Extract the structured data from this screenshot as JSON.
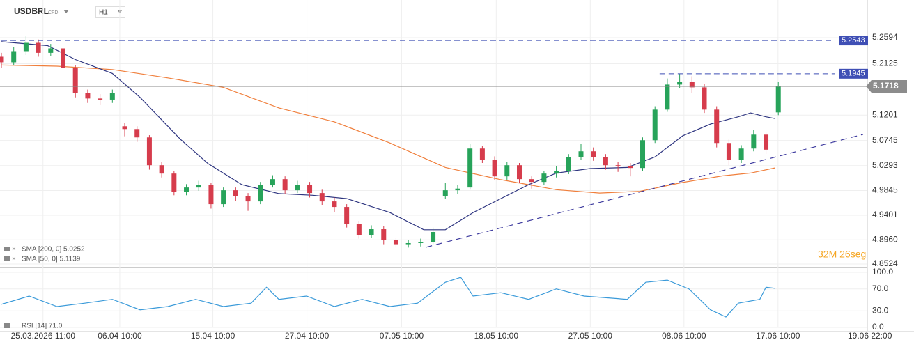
{
  "header": {
    "symbol": "USDBRL",
    "instrument_type": "CFD",
    "timeframe": "H1",
    "timer": "32M 26seg"
  },
  "chart_data": [
    {
      "type": "candlestick",
      "title": "USDBRL",
      "up_color": "#27a35a",
      "down_color": "#d63c4c",
      "grid": true,
      "xlim": [
        0,
        282
      ],
      "ylim": [
        4.8474,
        5.3145
      ],
      "xticks": [
        {
          "value": 13.5,
          "label": "25.03.2026 11:00"
        },
        {
          "value": 38.4,
          "label": "06.04 10:00"
        },
        {
          "value": 68.6,
          "label": "15.04 10:00"
        },
        {
          "value": 99.1,
          "label": "27.04 10:00"
        },
        {
          "value": 129.8,
          "label": "07.05 10:00"
        },
        {
          "value": 160.5,
          "label": "18.05 10:00"
        },
        {
          "value": 191,
          "label": "27.05 10:00"
        },
        {
          "value": 221.4,
          "label": "08.06 10:00"
        },
        {
          "value": 251.9,
          "label": "17.06 10:00"
        },
        {
          "value": 281.7,
          "label": "19.06 22:00"
        }
      ],
      "yticks": [
        5.2594,
        5.2125,
        5.1201,
        5.0745,
        5.0293,
        4.9845,
        4.9401,
        {
          "value": 4.896,
          "label": "4.8960"
        },
        4.8524
      ],
      "x": [
        0,
        4,
        8,
        12,
        16,
        20,
        24,
        28,
        32,
        36,
        40,
        44,
        48,
        52,
        56,
        60,
        64,
        68,
        72,
        76,
        80,
        84,
        88,
        92,
        96,
        100,
        104,
        108,
        112,
        116,
        120,
        124,
        128,
        132,
        136,
        140,
        144,
        148,
        152,
        156,
        160,
        164,
        168,
        172,
        176,
        180,
        184,
        188,
        192,
        196,
        200,
        204,
        208,
        212,
        216,
        220,
        224,
        228,
        232,
        236,
        240,
        244,
        248,
        252
      ],
      "open": [
        5.225,
        5.215,
        5.235,
        5.25,
        5.232,
        5.24,
        5.205,
        5.16,
        5.15,
        5.148,
        5.1,
        5.095,
        5.08,
        5.03,
        5.015,
        4.982,
        4.99,
        4.995,
        4.96,
        4.985,
        4.975,
        4.965,
        4.995,
        5.005,
        4.985,
        4.995,
        4.98,
        4.965,
        4.955,
        4.925,
        4.905,
        4.915,
        4.895,
        4.888,
        4.89,
        4.892,
        4.975,
        4.985,
        4.99,
        5.06,
        5.04,
        5.01,
        5.03,
        5.005,
        5.0,
        5.015,
        5.02,
        5.045,
        5.055,
        5.045,
        5.03,
        5.028,
        5.025,
        5.075,
        5.13,
        5.175,
        5.18,
        5.17,
        5.13,
        5.07,
        5.04,
        5.06,
        5.085,
        5.125
      ],
      "high": [
        5.232,
        5.242,
        5.262,
        5.256,
        5.248,
        5.244,
        5.21,
        5.166,
        5.158,
        5.166,
        5.106,
        5.1,
        5.084,
        5.036,
        5.02,
        4.996,
        5.002,
        4.998,
        4.99,
        4.99,
        4.98,
        5.0,
        5.012,
        5.01,
        5.002,
        5.0,
        4.986,
        4.972,
        4.96,
        4.93,
        4.922,
        4.92,
        4.9,
        4.896,
        4.898,
        4.918,
        4.998,
        4.994,
        5.068,
        5.064,
        5.046,
        5.036,
        5.034,
        5.01,
        5.02,
        5.028,
        5.05,
        5.068,
        5.062,
        5.05,
        5.036,
        5.034,
        5.08,
        5.136,
        5.186,
        5.1945,
        5.19,
        5.176,
        5.136,
        5.076,
        5.066,
        5.094,
        5.09,
        5.18
      ],
      "low": [
        5.205,
        5.21,
        5.228,
        5.225,
        5.226,
        5.198,
        5.152,
        5.142,
        5.138,
        5.142,
        5.082,
        5.072,
        5.022,
        5.008,
        4.976,
        4.976,
        4.984,
        4.952,
        4.955,
        4.966,
        4.948,
        4.96,
        4.99,
        4.978,
        4.98,
        4.972,
        4.958,
        4.946,
        4.918,
        4.898,
        4.9,
        4.888,
        4.882,
        4.882,
        4.884,
        4.888,
        4.97,
        4.978,
        4.986,
        5.034,
        5.004,
        5.004,
        4.998,
        4.988,
        4.994,
        5.008,
        5.014,
        5.04,
        5.038,
        5.022,
        5.018,
        5.01,
        5.02,
        5.07,
        5.126,
        5.168,
        5.16,
        5.124,
        5.062,
        5.03,
        5.034,
        5.055,
        5.05,
        5.12
      ],
      "close": [
        5.215,
        5.235,
        5.25,
        5.232,
        5.24,
        5.205,
        5.16,
        5.15,
        5.148,
        5.16,
        5.095,
        5.08,
        5.03,
        5.015,
        4.982,
        4.99,
        4.995,
        4.96,
        4.985,
        4.975,
        4.965,
        4.995,
        5.005,
        4.985,
        4.995,
        4.98,
        4.965,
        4.955,
        4.925,
        4.905,
        4.915,
        4.895,
        4.888,
        4.89,
        4.892,
        4.91,
        4.985,
        4.988,
        5.06,
        5.04,
        5.01,
        5.03,
        5.005,
        5.0,
        5.015,
        5.02,
        5.045,
        5.055,
        5.045,
        5.03,
        5.028,
        5.025,
        5.075,
        5.13,
        5.175,
        5.18,
        5.17,
        5.13,
        5.07,
        5.04,
        5.06,
        5.085,
        5.058,
        5.1718
      ],
      "series": [
        {
          "name": "SMA [200, 0] 5.0252",
          "color": "#f07f3c",
          "x": [
            0,
            18,
            36,
            54,
            72,
            90,
            108,
            126,
            144,
            162,
            180,
            194,
            207,
            221,
            234,
            243,
            251
          ],
          "values": [
            5.21,
            5.208,
            5.202,
            5.187,
            5.17,
            5.133,
            5.108,
            5.07,
            5.026,
            5.004,
            4.986,
            4.98,
            4.983,
            4.999,
            5.011,
            5.016,
            5.0252
          ]
        },
        {
          "name": "SMA [50, 0] 5.1139",
          "color": "#2e3580",
          "x": [
            0,
            15,
            24,
            36,
            45,
            58,
            67,
            78,
            90,
            101,
            112,
            126,
            137,
            144,
            153,
            162,
            171,
            180,
            191,
            203,
            212,
            221,
            230,
            239,
            243,
            248,
            251
          ],
          "values": [
            5.252,
            5.245,
            5.22,
            5.195,
            5.152,
            5.077,
            5.033,
            4.995,
            4.979,
            4.976,
            4.97,
            4.945,
            4.914,
            4.914,
            4.945,
            4.97,
            4.995,
            5.016,
            5.024,
            5.026,
            5.045,
            5.083,
            5.104,
            5.117,
            5.124,
            5.117,
            5.1139
          ]
        }
      ],
      "levels": [
        {
          "value": 5.2543,
          "x": [
            0,
            270.4
          ],
          "color": "#3f4fb5"
        },
        {
          "value": 5.1945,
          "x": [
            213.5,
            270.4
          ],
          "color": "#3f4fb5"
        }
      ],
      "current_price": 5.1718,
      "trendline": {
        "x": [
          137.7,
          279.5
        ],
        "values": [
          4.8825,
          5.0854
        ],
        "color": "#3d3a9e"
      }
    },
    {
      "type": "line",
      "ylim": [
        0,
        100
      ],
      "yticks": [
        {
          "value": 100,
          "label": "100.0"
        },
        {
          "value": 70,
          "label": "70.0"
        },
        {
          "value": 30,
          "label": "30.0"
        },
        {
          "value": 0,
          "label": "0.0"
        }
      ],
      "series": [
        {
          "name": "RSI [14] 71.0",
          "color": "#3a9ad9",
          "x": [
            0,
            9,
            18,
            27,
            36,
            45,
            54,
            63,
            72,
            81,
            86,
            90,
            99,
            108,
            117,
            126,
            135,
            144,
            149,
            153,
            162,
            171,
            180,
            189,
            203,
            209,
            216,
            223,
            230,
            235,
            239,
            246,
            248,
            251
          ],
          "values": [
            42,
            57,
            38,
            44,
            51,
            32,
            38,
            51,
            38,
            44,
            73,
            51,
            57,
            38,
            51,
            38,
            44,
            82,
            91,
            57,
            63,
            51,
            70,
            57,
            51,
            82,
            86,
            70,
            32,
            19,
            44,
            51,
            73,
            71
          ]
        }
      ]
    }
  ]
}
